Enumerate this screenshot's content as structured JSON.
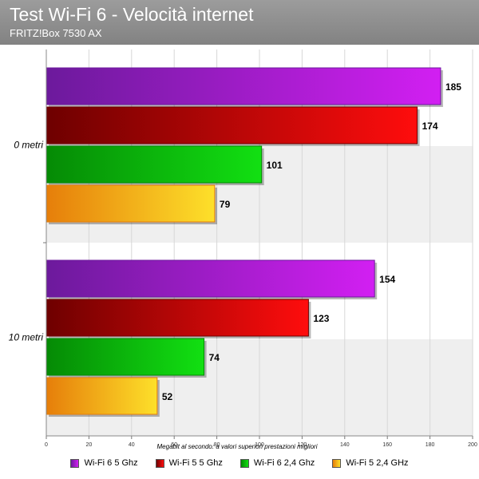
{
  "header": {
    "title": "Test Wi-Fi 6 - Velocità internet",
    "subtitle": "FRITZ!Box 7530 AX"
  },
  "chart_data": {
    "type": "bar",
    "orientation": "horizontal",
    "title": "Test Wi-Fi 6 - Velocità internet",
    "subtitle": "FRITZ!Box 7530 AX",
    "categories": [
      "0 metri",
      "10 metri"
    ],
    "series": [
      {
        "name": "Wi-Fi 6 5 Ghz",
        "values": [
          185,
          154
        ],
        "color_light": "#d21ff2",
        "color_dark": "#6c1a9c"
      },
      {
        "name": "Wi-Fi 5 5 Ghz",
        "values": [
          174,
          123
        ],
        "color_light": "#ff0d0d",
        "color_dark": "#6e0000"
      },
      {
        "name": "Wi-Fi 6 2,4 Ghz",
        "values": [
          101,
          74
        ],
        "color_light": "#12e012",
        "color_dark": "#058a05"
      },
      {
        "name": "Wi-Fi 5 2,4 GHz",
        "values": [
          79,
          52
        ],
        "color_light": "#fde02a",
        "color_dark": "#e67e0a"
      }
    ],
    "xlabel": "Megabit al secondo: a valori superiori prestazioni migliori",
    "ylabel": "",
    "xlim": [
      0,
      200
    ],
    "xticks": [
      0,
      20,
      40,
      60,
      80,
      100,
      120,
      140,
      160,
      180,
      200
    ],
    "data_labels": true,
    "grid": true,
    "legend_position": "bottom"
  }
}
